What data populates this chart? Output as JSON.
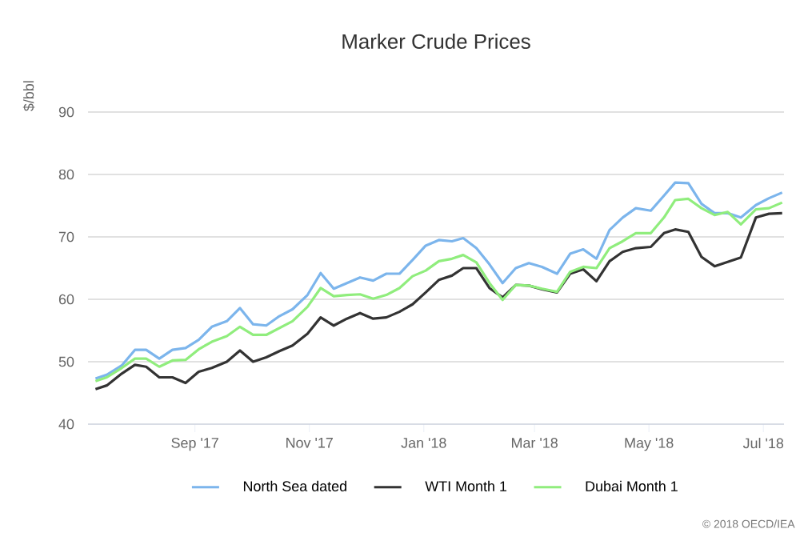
{
  "chart_data": {
    "type": "line",
    "title": "Marker Crude Prices",
    "ylabel": "$/bbl",
    "ylim": [
      40,
      90
    ],
    "yticks": [
      40,
      50,
      60,
      70,
      80,
      90
    ],
    "xlim": [
      "2017-07-06",
      "2018-07-12"
    ],
    "xticks": [
      {
        "value": "2017-09-01",
        "label": "Sep '17"
      },
      {
        "value": "2017-11-01",
        "label": "Nov '17"
      },
      {
        "value": "2018-01-01",
        "label": "Jan '18"
      },
      {
        "value": "2018-03-01",
        "label": "Mar '18"
      },
      {
        "value": "2018-05-01",
        "label": "May '18"
      },
      {
        "value": "2018-07-01",
        "label": "Jul '18"
      }
    ],
    "x": [
      "2017-07-10",
      "2017-07-16",
      "2017-07-24",
      "2017-07-31",
      "2017-08-06",
      "2017-08-13",
      "2017-08-20",
      "2017-08-27",
      "2017-09-03",
      "2017-09-10",
      "2017-09-18",
      "2017-09-25",
      "2017-10-02",
      "2017-10-09",
      "2017-10-16",
      "2017-10-23",
      "2017-10-31",
      "2017-11-07",
      "2017-11-14",
      "2017-11-21",
      "2017-11-28",
      "2017-12-05",
      "2017-12-12",
      "2017-12-19",
      "2017-12-26",
      "2018-01-02",
      "2018-01-09",
      "2018-01-16",
      "2018-01-22",
      "2018-01-29",
      "2018-02-05",
      "2018-02-12",
      "2018-02-19",
      "2018-02-26",
      "2018-03-05",
      "2018-03-13",
      "2018-03-20",
      "2018-03-27",
      "2018-04-03",
      "2018-04-10",
      "2018-04-17",
      "2018-04-24",
      "2018-05-02",
      "2018-05-09",
      "2018-05-15",
      "2018-05-22",
      "2018-05-29",
      "2018-06-05",
      "2018-06-12",
      "2018-06-19",
      "2018-06-27",
      "2018-07-04",
      "2018-07-11"
    ],
    "series": [
      {
        "name": "North Sea dated",
        "color": "#7cb5ec",
        "values": [
          47.3,
          47.9,
          49.4,
          51.9,
          51.9,
          50.5,
          51.9,
          52.2,
          53.5,
          55.6,
          56.5,
          58.6,
          56.0,
          55.8,
          57.3,
          58.4,
          60.7,
          64.2,
          61.7,
          62.6,
          63.5,
          63.0,
          64.1,
          64.1,
          66.3,
          68.6,
          69.5,
          69.3,
          69.8,
          68.2,
          65.6,
          62.6,
          65.0,
          65.8,
          65.2,
          64.1,
          67.3,
          68.0,
          66.5,
          71.1,
          73.1,
          74.6,
          74.2,
          76.6,
          78.7,
          78.6,
          75.3,
          73.8,
          73.8,
          73.1,
          75.1,
          76.2,
          77.1
        ]
      },
      {
        "name": "WTI Month 1",
        "color": "#333333",
        "values": [
          45.6,
          46.2,
          48.1,
          49.5,
          49.2,
          47.5,
          47.5,
          46.6,
          48.4,
          49.0,
          50.0,
          51.8,
          50.0,
          50.7,
          51.7,
          52.6,
          54.5,
          57.1,
          55.8,
          56.9,
          57.8,
          56.9,
          57.1,
          58.0,
          59.2,
          61.1,
          63.1,
          63.8,
          65.0,
          65.0,
          61.8,
          60.3,
          62.3,
          62.2,
          61.6,
          61.1,
          64.1,
          64.8,
          62.9,
          66.1,
          67.6,
          68.2,
          68.4,
          70.6,
          71.2,
          70.8,
          66.8,
          65.3,
          66.0,
          66.7,
          73.1,
          73.7,
          73.8
        ]
      },
      {
        "name": "Dubai Month 1",
        "color": "#90ed7d",
        "values": [
          46.9,
          47.5,
          49.0,
          50.5,
          50.5,
          49.2,
          50.2,
          50.3,
          52.0,
          53.2,
          54.1,
          55.6,
          54.3,
          54.3,
          55.4,
          56.5,
          58.8,
          61.8,
          60.5,
          60.7,
          60.8,
          60.1,
          60.7,
          61.8,
          63.7,
          64.6,
          66.1,
          66.5,
          67.1,
          65.9,
          62.6,
          59.9,
          62.3,
          62.2,
          61.7,
          61.2,
          64.4,
          65.2,
          65.0,
          68.2,
          69.3,
          70.6,
          70.6,
          73.1,
          75.9,
          76.1,
          74.6,
          73.5,
          74.0,
          72.0,
          74.4,
          74.6,
          75.5
        ]
      }
    ],
    "grid": "y",
    "legend": "bottom",
    "marker": "none",
    "line_style": "solid",
    "annotations": [
      "© 2018 OECD/IEA"
    ]
  }
}
